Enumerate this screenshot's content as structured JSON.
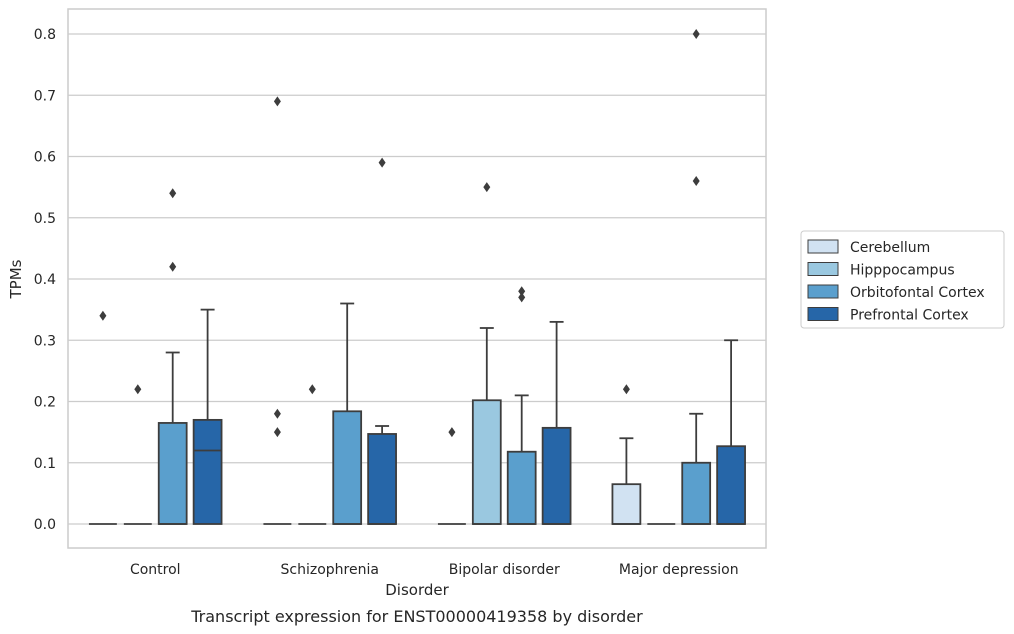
{
  "chart_data": {
    "type": "box",
    "title": "",
    "xlabel": "Disorder",
    "ylabel": "TPMs",
    "caption": "Transcript expression for ENST00000419358 by disorder",
    "ylim": [
      -0.04,
      0.84
    ],
    "yticks": [
      0.0,
      0.1,
      0.2,
      0.3,
      0.4,
      0.5,
      0.6,
      0.7,
      0.8
    ],
    "ytick_labels": [
      "0.0",
      "0.1",
      "0.2",
      "0.3",
      "0.4",
      "0.5",
      "0.6",
      "0.7",
      "0.8"
    ],
    "grid": "horizontal",
    "legend_position": "right",
    "categories": [
      "Control",
      "Schizophrenia",
      "Bipolar disorder",
      "Major depression"
    ],
    "series": [
      {
        "name": "Cerebellum",
        "color": "#d1e2f2",
        "boxes": [
          {
            "whislo": 0,
            "q1": 0,
            "med": 0,
            "q3": 0,
            "whishi": 0,
            "fliers": [
              0.34
            ]
          },
          {
            "whislo": 0,
            "q1": 0,
            "med": 0,
            "q3": 0,
            "whishi": 0,
            "fliers": [
              0.69,
              0.18,
              0.15
            ]
          },
          {
            "whislo": 0,
            "q1": 0,
            "med": 0,
            "q3": 0,
            "whishi": 0,
            "fliers": [
              0.15
            ]
          },
          {
            "whislo": 0,
            "q1": 0,
            "med": 0,
            "q3": 0.065,
            "whishi": 0.14,
            "fliers": [
              0.22
            ]
          }
        ]
      },
      {
        "name": "Hipppocampus",
        "color": "#9ac8e0",
        "boxes": [
          {
            "whislo": 0,
            "q1": 0,
            "med": 0,
            "q3": 0,
            "whishi": 0,
            "fliers": [
              0.22
            ]
          },
          {
            "whislo": 0,
            "q1": 0,
            "med": 0,
            "q3": 0,
            "whishi": 0,
            "fliers": [
              0.22
            ]
          },
          {
            "whislo": 0,
            "q1": 0,
            "med": 0,
            "q3": 0.202,
            "whishi": 0.32,
            "fliers": [
              0.55
            ]
          },
          {
            "whislo": 0,
            "q1": 0,
            "med": 0,
            "q3": 0,
            "whishi": 0,
            "fliers": []
          }
        ]
      },
      {
        "name": "Orbitofontal Cortex",
        "color": "#5a9fcd",
        "boxes": [
          {
            "whislo": 0,
            "q1": 0,
            "med": 0,
            "q3": 0.165,
            "whishi": 0.28,
            "fliers": [
              0.54,
              0.42
            ]
          },
          {
            "whislo": 0,
            "q1": 0,
            "med": 0,
            "q3": 0.184,
            "whishi": 0.36,
            "fliers": []
          },
          {
            "whislo": 0,
            "q1": 0,
            "med": 0,
            "q3": 0.118,
            "whishi": 0.21,
            "fliers": [
              0.38,
              0.37
            ]
          },
          {
            "whislo": 0,
            "q1": 0,
            "med": 0,
            "q3": 0.1,
            "whishi": 0.18,
            "fliers": [
              0.8,
              0.56
            ]
          }
        ]
      },
      {
        "name": "Prefrontal Cortex",
        "color": "#2666a8",
        "boxes": [
          {
            "whislo": 0,
            "q1": 0,
            "med": 0.12,
            "q3": 0.17,
            "whishi": 0.35,
            "fliers": []
          },
          {
            "whislo": 0,
            "q1": 0,
            "med": 0,
            "q3": 0.147,
            "whishi": 0.16,
            "fliers": [
              0.59
            ]
          },
          {
            "whislo": 0,
            "q1": 0,
            "med": 0,
            "q3": 0.157,
            "whishi": 0.33,
            "fliers": []
          },
          {
            "whislo": 0,
            "q1": 0,
            "med": 0,
            "q3": 0.127,
            "whishi": 0.3,
            "fliers": []
          }
        ]
      }
    ]
  }
}
